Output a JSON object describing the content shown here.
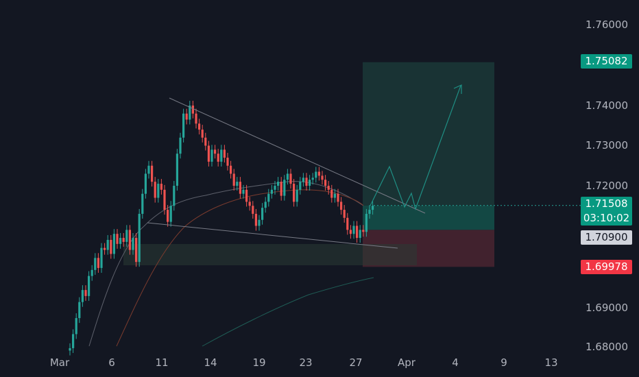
{
  "colors": {
    "background": "#131722",
    "up": "#26a69a",
    "down": "#ef5350",
    "up_fill": "#089981",
    "down_fill": "#f23645",
    "target_zone": "#1f4a44",
    "stop_zone": "#4a2430",
    "grid_text": "#b2b5be"
  },
  "price_axis": {
    "ticks": [
      "1.76000",
      "1.74000",
      "1.73000",
      "1.72000",
      "1.69000",
      "1.68000"
    ],
    "tick_values": [
      1.76,
      1.74,
      1.73,
      1.72,
      1.69,
      1.68
    ]
  },
  "time_axis": {
    "ticks": [
      "Mar",
      "6",
      "11",
      "14",
      "19",
      "23",
      "27",
      "Apr",
      "4",
      "9",
      "13"
    ]
  },
  "badges": {
    "target": "1.75082",
    "current_price": "1.71508",
    "countdown": "03:10:02",
    "entry": "1.70900",
    "stop": "1.69978"
  },
  "chart_data": {
    "type": "candlestick",
    "y_range": [
      1.679,
      1.764
    ],
    "position": {
      "target": 1.75082,
      "entry": 1.709,
      "stop": 1.69978,
      "current": 1.71508
    },
    "closes": [
      1.6795,
      1.683,
      1.687,
      1.691,
      1.694,
      1.6925,
      1.6975,
      1.699,
      1.702,
      1.6995,
      1.7045,
      1.704,
      1.7065,
      1.703,
      1.708,
      1.7055,
      1.707,
      1.706,
      1.709,
      1.704,
      1.707,
      1.701,
      1.713,
      1.718,
      1.723,
      1.725,
      1.721,
      1.717,
      1.7205,
      1.719,
      1.714,
      1.711,
      1.715,
      1.72,
      1.728,
      1.732,
      1.738,
      1.7365,
      1.74,
      1.738,
      1.7355,
      1.734,
      1.732,
      1.73,
      1.726,
      1.729,
      1.728,
      1.726,
      1.729,
      1.727,
      1.725,
      1.723,
      1.72,
      1.721,
      1.718,
      1.719,
      1.716,
      1.715,
      1.713,
      1.71,
      1.7115,
      1.7145,
      1.716,
      1.718,
      1.719,
      1.72,
      1.721,
      1.7175,
      1.7215,
      1.723,
      1.7205,
      1.716,
      1.719,
      1.721,
      1.722,
      1.72,
      1.7215,
      1.722,
      1.7235,
      1.7225,
      1.7215,
      1.72,
      1.719,
      1.717,
      1.718,
      1.716,
      1.714,
      1.712,
      1.709,
      1.708,
      1.71,
      1.707,
      1.709,
      1.7085,
      1.713,
      1.714,
      1.715
    ]
  }
}
